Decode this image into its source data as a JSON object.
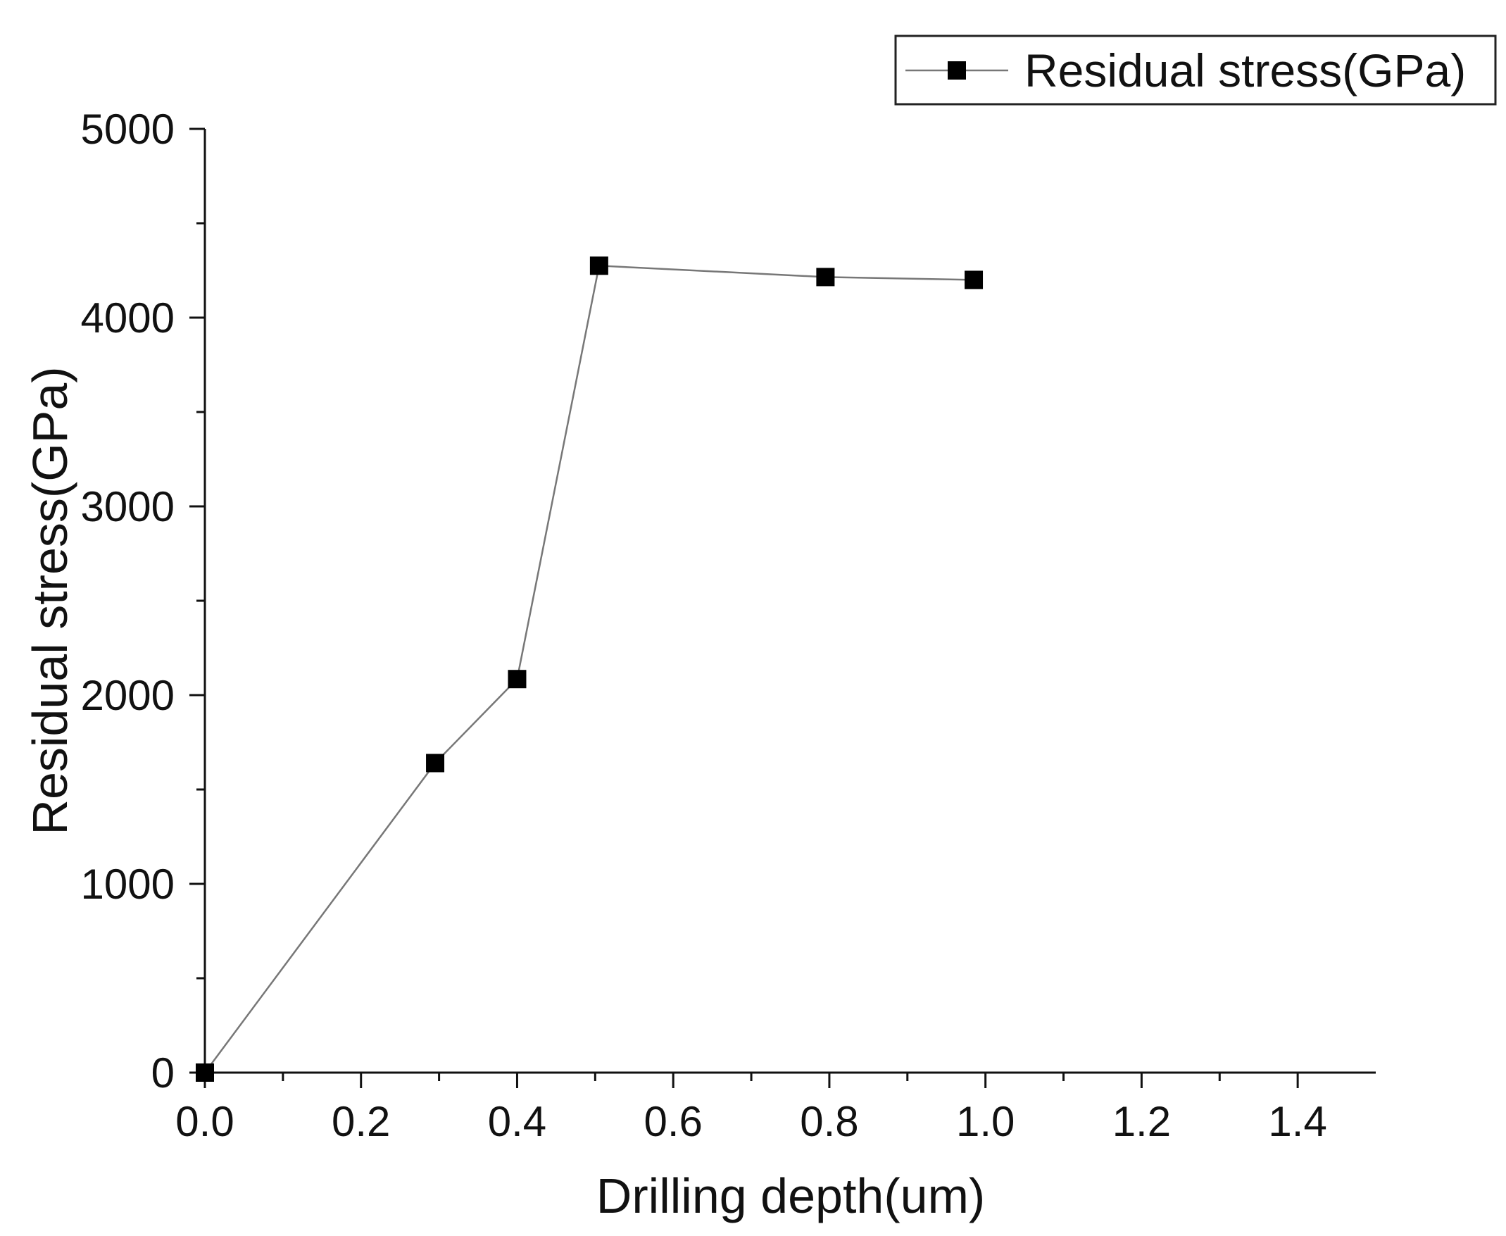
{
  "chart_data": {
    "type": "line",
    "title": "",
    "xlabel": "Drilling depth(um)",
    "ylabel": "Residual stress(GPa)",
    "xlim": [
      0,
      1.5
    ],
    "ylim": [
      0,
      5000
    ],
    "x_ticks": [
      0.0,
      0.2,
      0.4,
      0.6,
      0.8,
      1.0,
      1.2,
      1.4
    ],
    "x_tick_labels": [
      "0.0",
      "0.2",
      "0.4",
      "0.6",
      "0.8",
      "1.0",
      "1.2",
      "1.4"
    ],
    "y_ticks": [
      0,
      1000,
      2000,
      3000,
      4000,
      5000
    ],
    "y_tick_labels": [
      "0",
      "1000",
      "2000",
      "3000",
      "4000",
      "5000"
    ],
    "grid": false,
    "legend_position": "top-right",
    "series": [
      {
        "name": "Residual stress(GPa)",
        "marker": "square",
        "line_color": "#777777",
        "marker_color": "#000000",
        "x": [
          0.0,
          0.295,
          0.4,
          0.505,
          0.795,
          0.985
        ],
        "y": [
          0,
          1640,
          2085,
          4275,
          4215,
          4200
        ]
      }
    ]
  }
}
